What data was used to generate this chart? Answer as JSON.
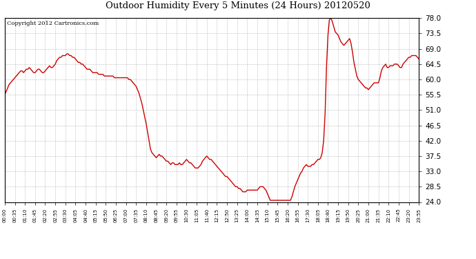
{
  "title": "Outdoor Humidity Every 5 Minutes (24 Hours) 20120520",
  "copyright": "Copyright 2012 Cartronics.com",
  "line_color": "#cc0000",
  "bg_color": "#ffffff",
  "grid_color": "#999999",
  "ylim": [
    24.0,
    78.0
  ],
  "yticks": [
    24.0,
    28.5,
    33.0,
    37.5,
    42.0,
    46.5,
    51.0,
    55.5,
    60.0,
    64.5,
    69.0,
    73.5,
    78.0
  ],
  "x_tick_every_n": 7,
  "humidity": [
    55.5,
    56.5,
    57.5,
    58.5,
    59.0,
    59.5,
    60.0,
    60.5,
    61.0,
    61.5,
    62.0,
    62.5,
    62.5,
    62.0,
    62.5,
    63.0,
    63.0,
    63.5,
    63.0,
    62.5,
    62.0,
    62.0,
    62.5,
    63.0,
    63.0,
    62.5,
    62.0,
    62.0,
    62.5,
    63.0,
    63.5,
    64.0,
    63.5,
    63.5,
    64.0,
    64.5,
    65.5,
    66.0,
    66.5,
    66.5,
    67.0,
    67.0,
    67.0,
    67.5,
    67.5,
    67.0,
    67.0,
    66.5,
    66.5,
    66.0,
    65.5,
    65.0,
    65.0,
    64.5,
    64.5,
    64.0,
    63.5,
    63.0,
    63.0,
    63.0,
    62.5,
    62.0,
    62.0,
    62.0,
    62.0,
    61.5,
    61.5,
    61.5,
    61.5,
    61.0,
    61.0,
    61.0,
    61.0,
    61.0,
    61.0,
    61.0,
    60.5,
    60.5,
    60.5,
    60.5,
    60.5,
    60.5,
    60.5,
    60.5,
    60.5,
    60.5,
    60.0,
    60.0,
    59.5,
    59.0,
    58.5,
    58.0,
    57.0,
    56.0,
    54.5,
    53.0,
    51.0,
    49.0,
    47.0,
    44.5,
    42.0,
    39.5,
    38.5,
    38.0,
    37.5,
    37.0,
    37.5,
    38.0,
    37.5,
    37.5,
    37.0,
    36.5,
    36.0,
    36.0,
    35.5,
    35.0,
    35.5,
    35.5,
    35.0,
    35.0,
    35.0,
    35.5,
    35.0,
    35.0,
    35.5,
    36.0,
    36.5,
    36.0,
    35.5,
    35.5,
    35.0,
    34.5,
    34.0,
    34.0,
    34.0,
    34.5,
    35.0,
    36.0,
    36.5,
    37.0,
    37.5,
    37.0,
    36.5,
    36.5,
    36.0,
    35.5,
    35.0,
    34.5,
    34.0,
    33.5,
    33.0,
    32.5,
    32.0,
    31.5,
    31.5,
    31.0,
    30.5,
    30.0,
    29.5,
    29.0,
    28.5,
    28.5,
    28.0,
    28.0,
    27.5,
    27.0,
    27.0,
    27.0,
    27.5,
    27.5,
    27.5,
    27.5,
    27.5,
    27.5,
    27.5,
    27.5,
    28.0,
    28.5,
    28.5,
    28.5,
    28.0,
    27.5,
    26.5,
    25.5,
    24.5,
    24.5,
    24.5,
    24.5,
    24.5,
    24.5,
    24.5,
    24.5,
    24.5,
    24.5,
    24.5,
    24.5,
    24.5,
    24.5,
    24.5,
    25.5,
    27.0,
    28.5,
    29.5,
    30.5,
    31.5,
    32.5,
    33.0,
    34.0,
    34.5,
    35.0,
    34.5,
    34.5,
    34.5,
    35.0,
    35.0,
    35.5,
    36.0,
    36.5,
    36.5,
    37.0,
    38.5,
    42.0,
    50.0,
    64.0,
    73.0,
    77.5,
    78.0,
    77.0,
    75.5,
    74.0,
    73.5,
    73.0,
    72.0,
    71.0,
    70.5,
    70.0,
    70.5,
    71.0,
    71.5,
    72.0,
    70.5,
    68.0,
    65.0,
    63.0,
    61.0,
    60.0,
    59.5,
    59.0,
    58.5,
    58.0,
    57.5,
    57.5,
    57.0,
    57.5,
    58.0,
    58.5,
    59.0,
    59.0,
    59.0,
    59.0,
    60.5,
    62.5,
    63.5,
    64.0,
    64.5,
    63.5,
    63.5,
    64.0,
    64.0,
    64.0,
    64.5,
    64.5,
    64.5,
    64.0,
    63.5,
    63.5,
    64.5,
    65.0,
    65.5,
    66.0,
    66.5,
    66.5,
    67.0,
    67.0,
    67.0,
    67.0,
    66.5,
    66.0
  ]
}
